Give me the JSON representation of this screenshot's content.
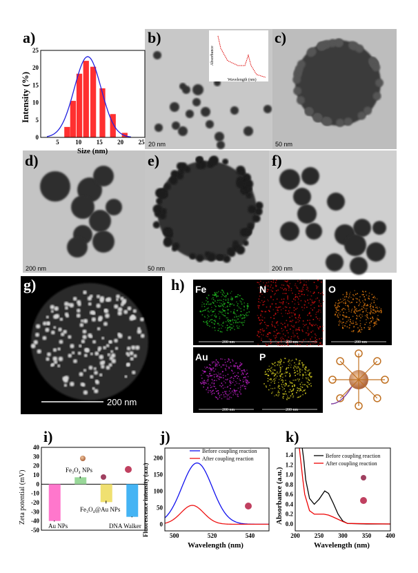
{
  "panels": {
    "a": "a)",
    "b": "b)",
    "c": "c)",
    "d": "d)",
    "e": "e)",
    "f": "f)",
    "g": "g)",
    "h": "h)",
    "i": "i)",
    "j": "j)",
    "k": "k)"
  },
  "scale_bars": {
    "b": "20 nm",
    "c": "50 nm",
    "d": "200 nm",
    "e": "50 nm",
    "f": "200 nm",
    "g": "200 nm",
    "h": "200 nm"
  },
  "inset_b": {
    "xlabel": "Wavelength (nm)",
    "ylabel": "Absorbance"
  },
  "elements": {
    "fe": "Fe",
    "n": "N",
    "o": "O",
    "au": "Au",
    "p": "P"
  },
  "element_colors": {
    "fe": "#1fb41f",
    "n": "#d01010",
    "o": "#e07a10",
    "au": "#c020c8",
    "p": "#d8d020"
  },
  "chart_data": [
    {
      "id": "a",
      "type": "bar",
      "xlabel": "Size (nm)",
      "ylabel": "Intensity (%)",
      "xlim": [
        0,
        25
      ],
      "ylim": [
        0,
        25
      ],
      "xticks": [
        5,
        10,
        15,
        20,
        25
      ],
      "yticks": [
        0,
        5,
        10,
        15,
        20,
        25
      ],
      "bin_centers": [
        7.3,
        8.7,
        10.2,
        11.8,
        13.5,
        15.7,
        18.2,
        21.0
      ],
      "values": [
        3.0,
        10.5,
        18.3,
        22.0,
        20.3,
        14.1,
        6.7,
        1.3
      ],
      "fit": {
        "type": "gaussian",
        "mean": 12.2,
        "peak": 23.2,
        "sigma": 3.2
      },
      "bar_color": "#ff3030",
      "fit_color": "#2020e0"
    },
    {
      "id": "i",
      "type": "bar",
      "ylabel": "Zeta potential (mV)",
      "ylim": [
        -50,
        40
      ],
      "yticks": [
        40,
        30,
        20,
        10,
        0,
        -10,
        -20,
        -30,
        -40,
        -50
      ],
      "categories": [
        "Au NPs",
        "Fe₃O₄ NPs",
        "Fe₃O₄@Au NPs",
        "DNA Walker"
      ],
      "values": [
        -40,
        7.5,
        -19.5,
        -35.5
      ],
      "errors": [
        0.5,
        1,
        1.5,
        0.5
      ],
      "colors": [
        "#ff77cc",
        "#99d899",
        "#f0e070",
        "#44b4f4"
      ]
    },
    {
      "id": "j",
      "type": "line",
      "xlabel": "Wavelength (nm)",
      "ylabel": "Fluorescence intensity (a.u.)",
      "xlim": [
        495,
        550
      ],
      "ylim": [
        -20,
        230
      ],
      "xticks": [
        500,
        520,
        540
      ],
      "yticks": [
        0,
        50,
        100,
        150,
        200
      ],
      "legend": "top-right",
      "series": [
        {
          "name": "Before coupling reaction",
          "color": "#1010ee",
          "gauss": {
            "center": 512,
            "peak": 185,
            "sigma": 8
          }
        },
        {
          "name": "After coupling reaction",
          "color": "#ee1010",
          "gauss": {
            "center": 509.5,
            "peak": 57,
            "sigma": 6
          }
        }
      ]
    },
    {
      "id": "k",
      "type": "line",
      "xlabel": "Wavelength (nm)",
      "ylabel": "Absorbance (a.u.)",
      "xlim": [
        200,
        400
      ],
      "ylim": [
        -0.14,
        1.54
      ],
      "xticks": [
        200,
        250,
        300,
        350,
        400
      ],
      "yticks": [
        0.0,
        0.2,
        0.4,
        0.6,
        0.8,
        1.0,
        1.2,
        1.4
      ],
      "legend": "top-right",
      "series": [
        {
          "name": "Before coupling reaction",
          "color": "#000000",
          "x": [
            214,
            218,
            222,
            230,
            240,
            250,
            262,
            270,
            280,
            290,
            300,
            310,
            350,
            400
          ],
          "y": [
            1.6,
            1.3,
            0.9,
            0.52,
            0.4,
            0.5,
            0.67,
            0.62,
            0.42,
            0.2,
            0.06,
            0.01,
            0.0,
            0.0
          ]
        },
        {
          "name": "After coupling reaction",
          "color": "#ee0000",
          "x": [
            208,
            212,
            216,
            220,
            230,
            240,
            260,
            270,
            280,
            300,
            310,
            400
          ],
          "y": [
            1.6,
            1.25,
            0.9,
            0.6,
            0.27,
            0.2,
            0.2,
            0.18,
            0.14,
            0.05,
            0.01,
            0.0
          ]
        }
      ]
    }
  ]
}
